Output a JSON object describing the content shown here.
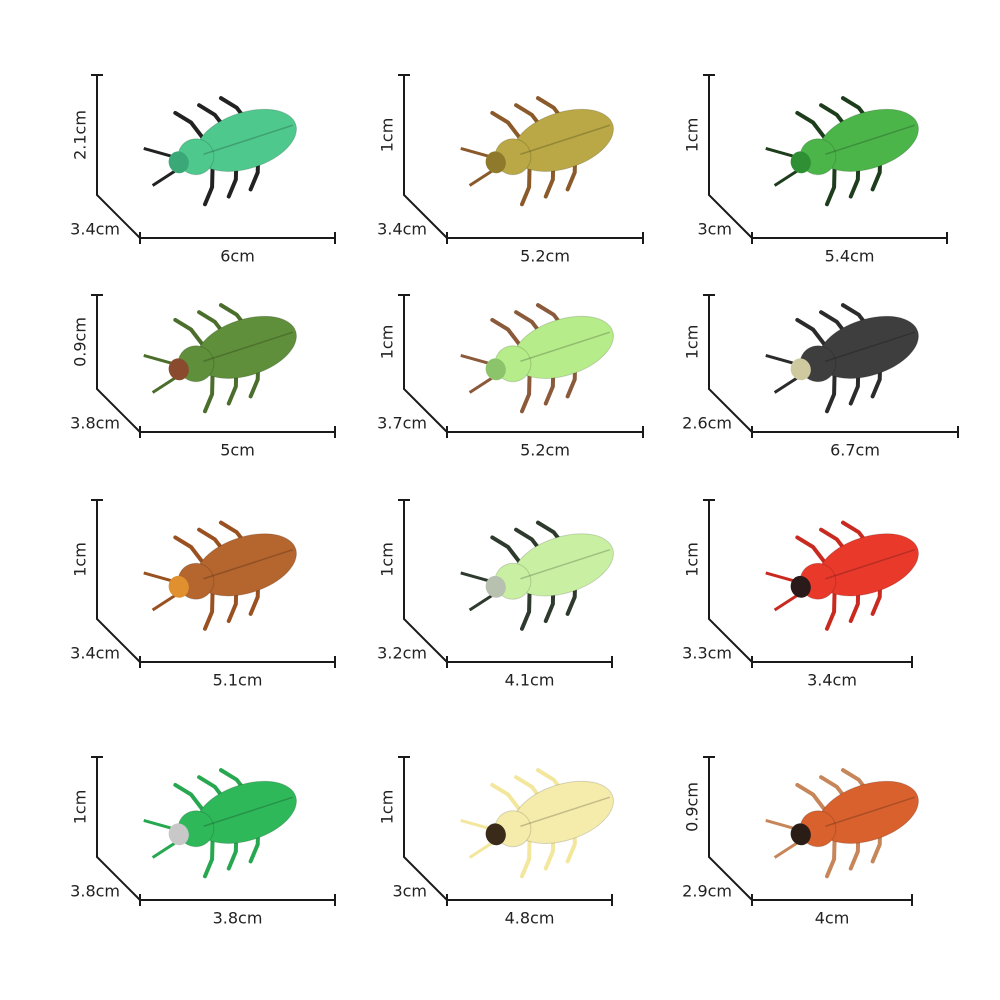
{
  "items": [
    {
      "height": "2.1cm",
      "depth": "3.4cm",
      "width": "6cm"
    },
    {
      "height": "1cm",
      "depth": "3.4cm",
      "width": "5.2cm"
    },
    {
      "height": "1cm",
      "depth": "3cm",
      "width": "5.4cm"
    },
    {
      "height": "0.9cm",
      "depth": "3.8cm",
      "width": "5cm"
    },
    {
      "height": "1cm",
      "depth": "3.7cm",
      "width": "5.2cm"
    },
    {
      "height": "1cm",
      "depth": "2.6cm",
      "width": "6.7cm"
    },
    {
      "height": "1cm",
      "depth": "3.4cm",
      "width": "5.1cm"
    },
    {
      "height": "1cm",
      "depth": "3.2cm",
      "width": "4.1cm"
    },
    {
      "height": "1cm",
      "depth": "3.3cm",
      "width": "3.4cm"
    },
    {
      "height": "1cm",
      "depth": "3.8cm",
      "width": "3.8cm"
    },
    {
      "height": "1cm",
      "depth": "3cm",
      "width": "4.8cm"
    },
    {
      "height": "0.9cm",
      "depth": "2.9cm",
      "width": "4cm"
    }
  ]
}
